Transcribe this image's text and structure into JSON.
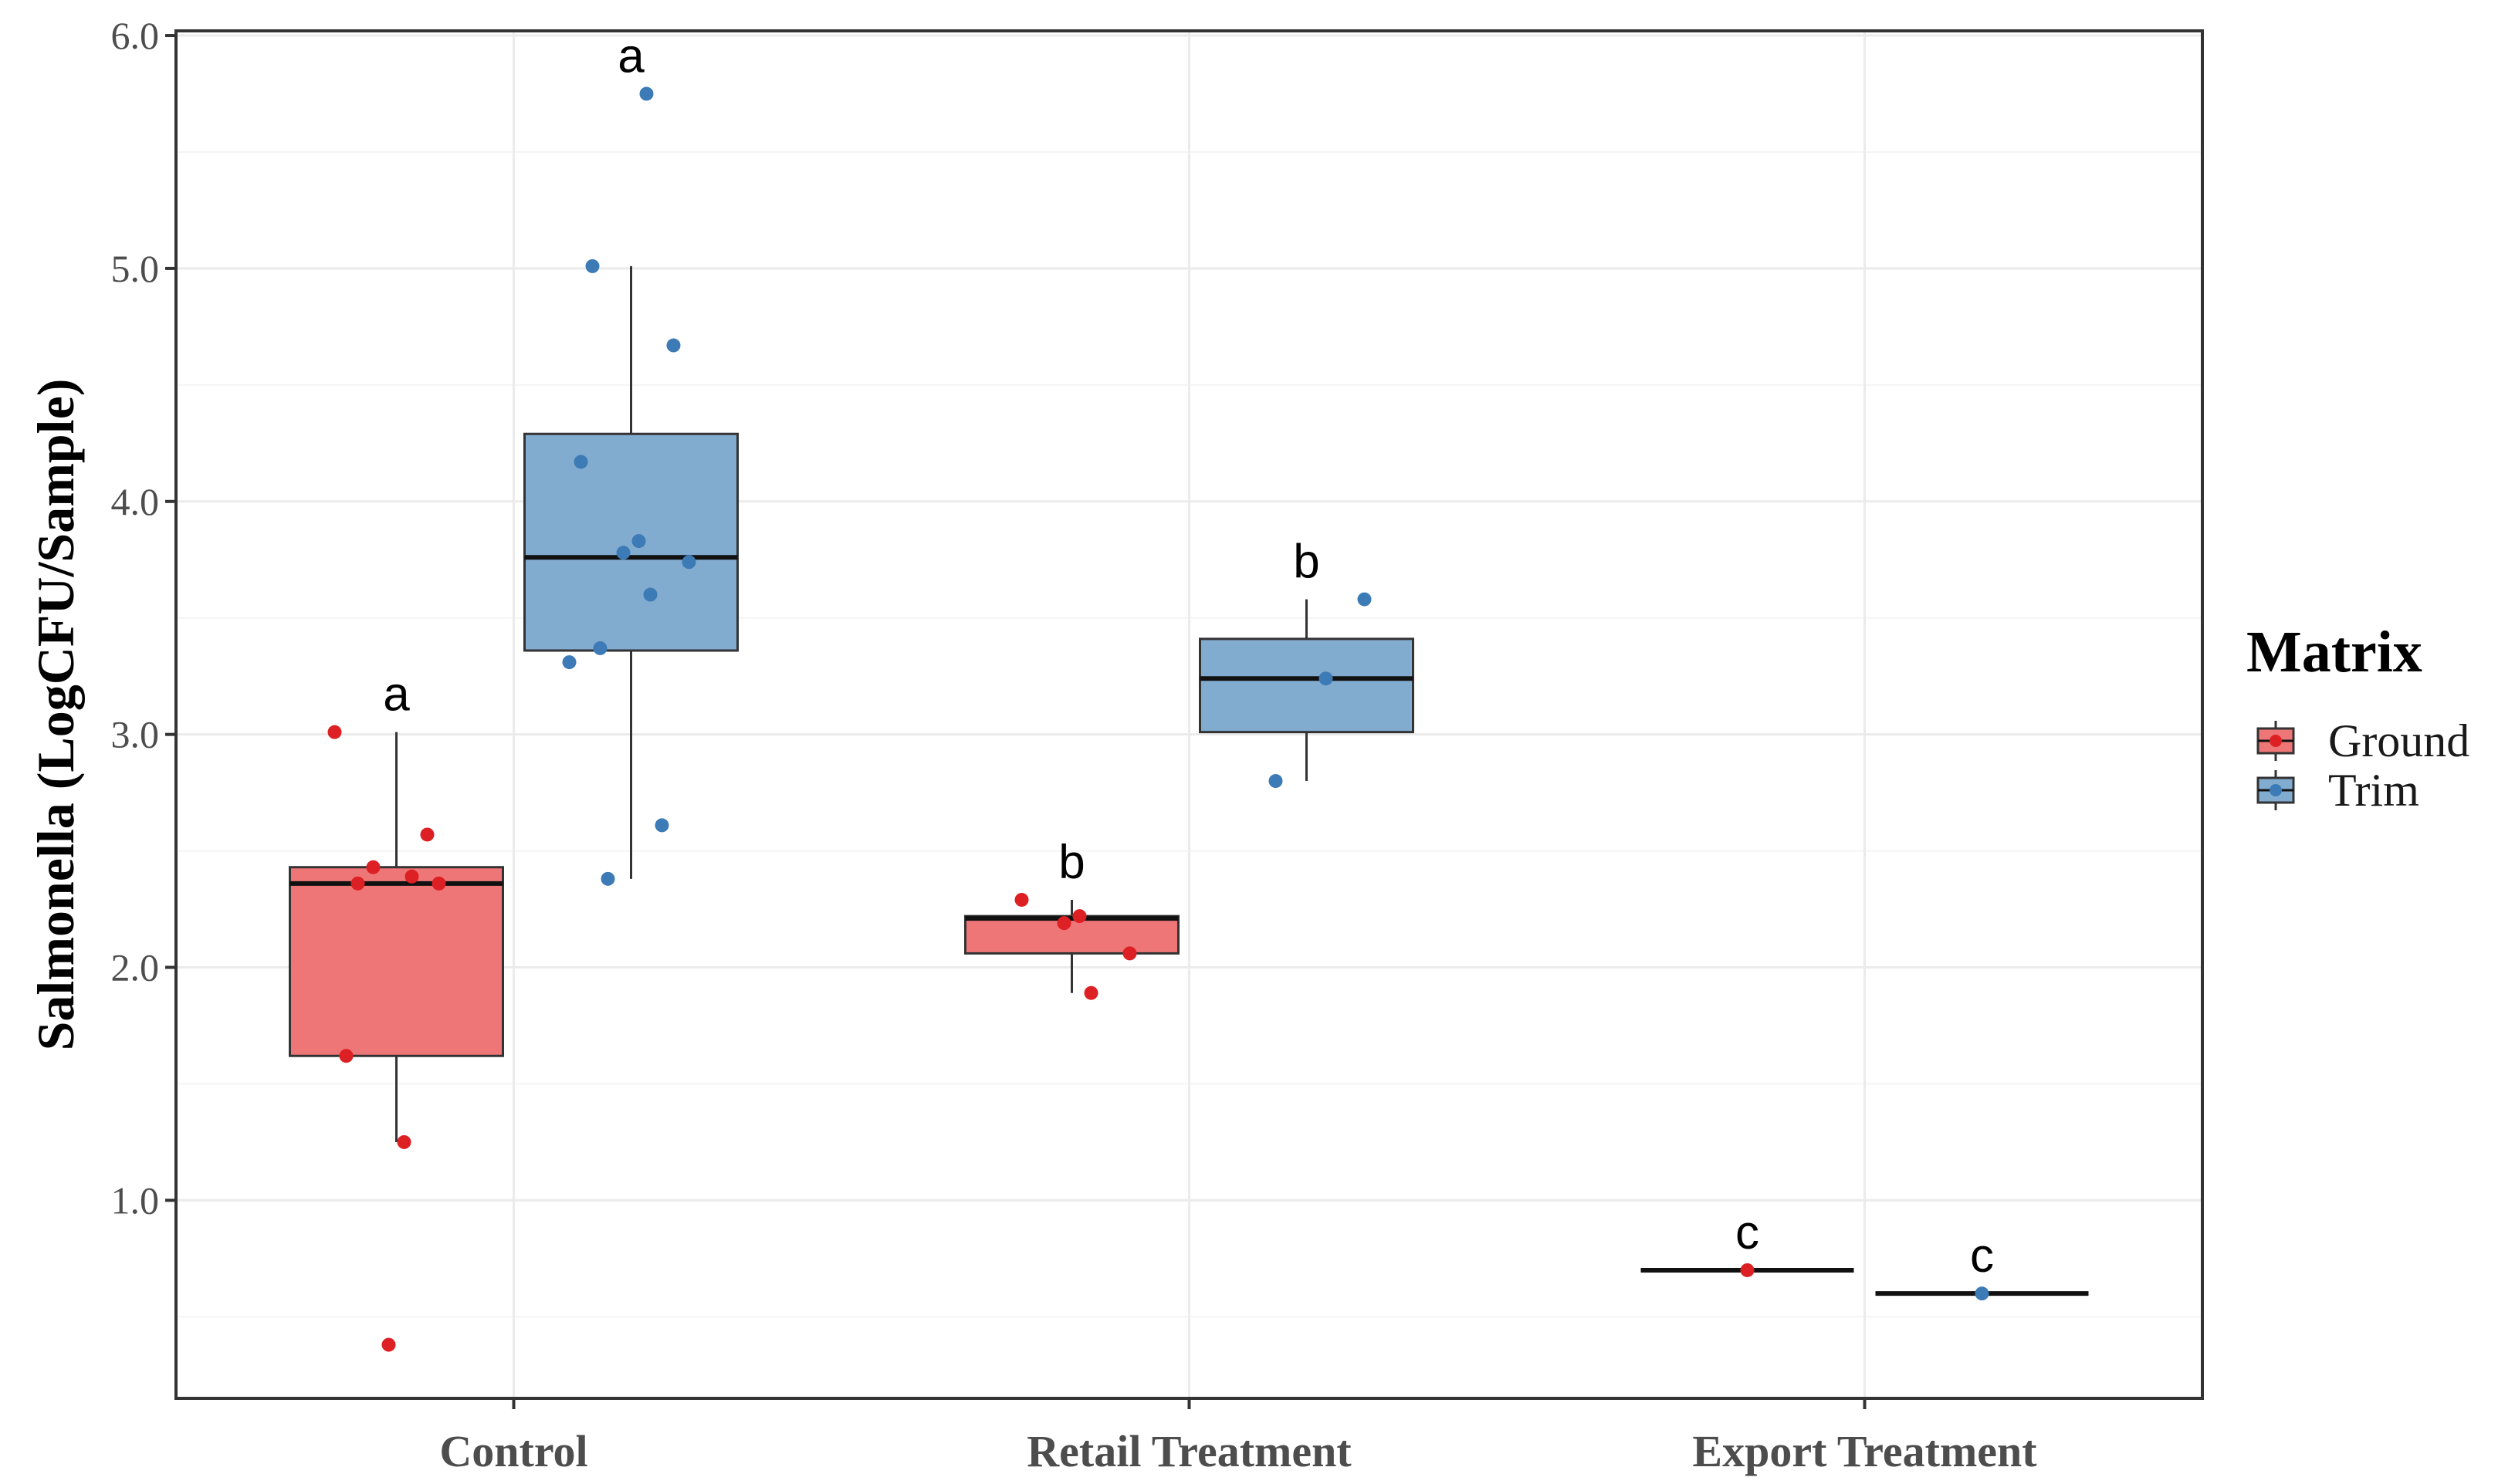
{
  "chart_data": {
    "type": "boxplot",
    "ylabel": "Salmonella (LogCFU/Sample)",
    "xlabel": "",
    "ylim": [
      0.15,
      6.02
    ],
    "yticks": [
      1.0,
      2.0,
      3.0,
      4.0,
      5.0,
      6.0
    ],
    "ytick_labels": [
      "1.0",
      "2.0",
      "3.0",
      "4.0",
      "5.0",
      "6.0"
    ],
    "categories": [
      "Control",
      "Retail Treatment",
      "Export Treatment"
    ],
    "grid": true,
    "legend": {
      "title": "Matrix",
      "position": "right",
      "entries": [
        {
          "name": "Ground",
          "fill": "#ee7677",
          "point": "#dd2024"
        },
        {
          "name": "Trim",
          "fill": "#82abd0",
          "point": "#3c7bb5"
        }
      ]
    },
    "groups": [
      {
        "category": "Control",
        "series": "Ground",
        "box": {
          "whisker_low": 1.25,
          "q1": 1.62,
          "median": 2.36,
          "q3": 2.43,
          "whisker_high": 3.01
        },
        "points": [
          3.01,
          2.57,
          2.43,
          2.39,
          2.36,
          2.36,
          1.62,
          1.25,
          0.38
        ],
        "letter": "a"
      },
      {
        "category": "Control",
        "series": "Trim",
        "box": {
          "whisker_low": 2.38,
          "q1": 3.36,
          "median": 3.76,
          "q3": 4.29,
          "whisker_high": 5.01
        },
        "points": [
          5.75,
          5.01,
          4.67,
          4.17,
          3.83,
          3.78,
          3.74,
          3.6,
          3.37,
          3.31,
          2.61,
          2.38
        ],
        "letter": "a"
      },
      {
        "category": "Retail Treatment",
        "series": "Ground",
        "box": {
          "whisker_low": 1.89,
          "q1": 2.06,
          "median": 2.21,
          "q3": 2.22,
          "whisker_high": 2.29
        },
        "points": [
          2.29,
          2.22,
          2.19,
          2.06,
          1.89
        ],
        "letter": "b"
      },
      {
        "category": "Retail Treatment",
        "series": "Trim",
        "box": {
          "whisker_low": 2.8,
          "q1": 3.01,
          "median": 3.24,
          "q3": 3.41,
          "whisker_high": 3.58
        },
        "points": [
          3.58,
          3.24,
          2.8
        ],
        "letter": "b"
      },
      {
        "category": "Export Treatment",
        "series": "Ground",
        "box": {
          "whisker_low": 0.7,
          "q1": 0.7,
          "median": 0.7,
          "q3": 0.7,
          "whisker_high": 0.7
        },
        "points": [
          0.7
        ],
        "letter": "c"
      },
      {
        "category": "Export Treatment",
        "series": "Trim",
        "box": {
          "whisker_low": 0.6,
          "q1": 0.6,
          "median": 0.6,
          "q3": 0.6,
          "whisker_high": 0.6
        },
        "points": [
          0.6
        ],
        "letter": "c"
      }
    ]
  }
}
